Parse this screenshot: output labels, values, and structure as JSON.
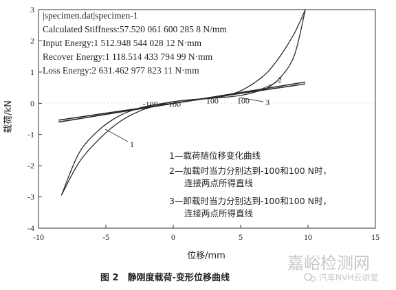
{
  "chart_data": {
    "type": "line",
    "xlabel": "位移/mm",
    "ylabel": "载荷/kN",
    "xlim": [
      -10,
      15
    ],
    "ylim": [
      -4,
      3
    ],
    "xticks": [
      "-10",
      "-5",
      "0",
      "5",
      "10",
      "15"
    ],
    "yticks": [
      "-4",
      "-3",
      "-2",
      "-1",
      "0",
      "1",
      "2",
      "3"
    ],
    "info_lines": [
      "|specimen.dat|specimen-1",
      "Calculated Stiffness:57.520 061 600 285 8 N/mm",
      "Input Energy:1 512.948 544 028 12 N·mm",
      "Recover Energy:1 118.514 433 794 99 N·mm",
      "Loss Energy:2 631.462 977 823 11 N·mm"
    ],
    "series": [
      {
        "name": "1",
        "description": "载荷随位移变化曲线",
        "loading": {
          "x": [
            -8.3,
            -7,
            -5.5,
            -4,
            -2.5,
            -1,
            0,
            1,
            2,
            3,
            4,
            5,
            6,
            7,
            8,
            9,
            9.8
          ],
          "y": [
            -2.95,
            -1.9,
            -1.15,
            -0.6,
            -0.25,
            -0.05,
            0.05,
            0.1,
            0.13,
            0.17,
            0.25,
            0.4,
            0.65,
            1.0,
            1.55,
            2.25,
            3.0
          ]
        },
        "unloading": {
          "x": [
            9.8,
            9,
            8,
            7,
            6,
            5,
            4,
            3,
            2,
            1,
            0,
            -1,
            -2.5,
            -4,
            -5.5,
            -7,
            -8.3
          ],
          "y": [
            3.0,
            1.55,
            0.85,
            0.5,
            0.35,
            0.25,
            0.2,
            0.17,
            0.14,
            0.1,
            0.05,
            -0.02,
            -0.15,
            -0.4,
            -0.85,
            -1.6,
            -2.95
          ]
        }
      },
      {
        "name": "2",
        "description": "加载时当力分别达到-100和100 N时，连接两点所得直线",
        "x": [
          -8.5,
          9.8
        ],
        "y": [
          -0.6,
          0.68
        ]
      },
      {
        "name": "3",
        "description": "卸载时当力分别达到-100和100 N时，连接两点所得直线",
        "x": [
          -8.5,
          9.8
        ],
        "y": [
          -0.54,
          0.62
        ]
      }
    ],
    "point_labels": [
      {
        "text": "-100",
        "x": -1.7,
        "y": -0.12
      },
      {
        "text": "-100",
        "x": 0.0,
        "y": -0.12
      },
      {
        "text": "100",
        "x": 2.9,
        "y": 0.0
      },
      {
        "text": "100",
        "x": 5.2,
        "y": 0.0
      }
    ],
    "legend": [
      {
        "lines": [
          "1—载荷随位移变化曲线"
        ]
      },
      {
        "lines": [
          "2—加载时当力分别达到-100和100 N时，",
          "连接两点所得直线"
        ]
      },
      {
        "lines": [
          "3—卸载时当力分别达到-100和100 N时，",
          "连接两点所得直线"
        ]
      }
    ],
    "curve_callouts": [
      "1",
      "2",
      "3"
    ]
  },
  "caption": "图 2　静刚度载荷-变形位移曲线",
  "watermark": {
    "big": "嘉峪检测网",
    "small": "汽车NVH云讲堂"
  },
  "colors": {
    "line": "#2a2a2a",
    "axis": "#333333",
    "watermark": "#b9bdc2"
  }
}
